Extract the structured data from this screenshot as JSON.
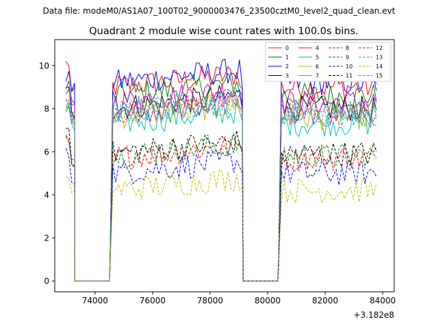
{
  "chart_data": {
    "type": "line",
    "suptitle": "Data file: modeM0/AS1A07_100T02_9000003476_23500cztM0_level2_quad_clean.evt",
    "title": "Quadrant 2 module wise count rates with 100.0s bins.",
    "xlabel": "",
    "ylabel": "",
    "x_offset_label": "+3.182e8",
    "xlim": [
      72600,
      84400
    ],
    "ylim": [
      -0.5,
      11.2
    ],
    "xticks": [
      74000,
      76000,
      78000,
      80000,
      82000,
      84000
    ],
    "xtick_labels": [
      "74000",
      "76000",
      "78000",
      "80000",
      "82000",
      "84000"
    ],
    "yticks": [
      0,
      2,
      4,
      6,
      8,
      10
    ],
    "ytick_labels": [
      "0",
      "2",
      "4",
      "6",
      "8",
      "10"
    ],
    "grid": false,
    "legend_position": "top-right",
    "gaps": [
      [
        73300,
        74500
      ],
      [
        79150,
        80350
      ]
    ],
    "segments": [
      [
        72990,
        73290
      ],
      [
        74520,
        79120
      ],
      [
        80380,
        83850
      ]
    ],
    "series": [
      {
        "name": "0",
        "color": "#ff0000",
        "dash": "solid",
        "level": 9.3,
        "start": 10.1,
        "end": 8.9
      },
      {
        "name": "1",
        "color": "#008000",
        "dash": "solid",
        "level": 8.9,
        "start": 9.2,
        "end": 8.6
      },
      {
        "name": "2",
        "color": "#0000ff",
        "dash": "solid",
        "level": 9.5,
        "start": 9.5,
        "end": 9.0
      },
      {
        "name": "3",
        "color": "#000000",
        "dash": "solid",
        "level": 8.3,
        "start": 8.8,
        "end": 8.0
      },
      {
        "name": "4",
        "color": "#bf00bf",
        "dash": "solid",
        "level": 8.6,
        "start": 8.6,
        "end": 8.2
      },
      {
        "name": "5",
        "color": "#00bfbf",
        "dash": "solid",
        "level": 7.6,
        "start": 7.9,
        "end": 7.4
      },
      {
        "name": "6",
        "color": "#bfbf00",
        "dash": "solid",
        "level": 7.9,
        "start": 8.0,
        "end": 7.6
      },
      {
        "name": "7",
        "color": "#808080",
        "dash": "solid",
        "level": 8.0,
        "start": 8.2,
        "end": 7.8
      },
      {
        "name": "8",
        "color": "#ff0000",
        "dash": "dashed",
        "level": 6.0,
        "start": 6.6,
        "end": 5.9
      },
      {
        "name": "9",
        "color": "#008000",
        "dash": "dashed",
        "level": 6.1,
        "start": 6.7,
        "end": 5.9
      },
      {
        "name": "10",
        "color": "#0000ff",
        "dash": "dashed",
        "level": 5.3,
        "start": 5.9,
        "end": 5.0
      },
      {
        "name": "11",
        "color": "#000000",
        "dash": "dashed",
        "level": 6.2,
        "start": 7.1,
        "end": 6.1
      },
      {
        "name": "12",
        "color": "#bf00bf",
        "dash": "dashed",
        "level": 8.1,
        "start": 8.3,
        "end": 7.9
      },
      {
        "name": "13",
        "color": "#00bfbf",
        "dash": "dashed",
        "level": 8.1,
        "start": 8.2,
        "end": 7.9
      },
      {
        "name": "14",
        "color": "#bfbf00",
        "dash": "dashed",
        "level": 4.5,
        "start": 4.7,
        "end": 4.4
      },
      {
        "name": "15",
        "color": "#808080",
        "dash": "dashed",
        "level": 8.2,
        "start": 8.4,
        "end": 8.0
      }
    ],
    "bin_width": 100
  }
}
